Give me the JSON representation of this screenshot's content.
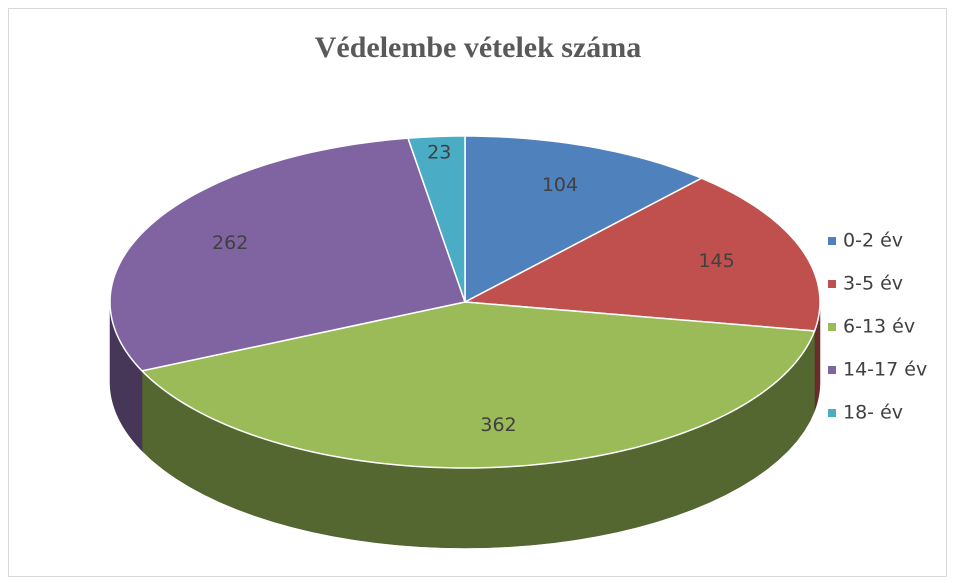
{
  "chart_data": {
    "type": "pie",
    "title": "Védelembe vételek száma",
    "categories": [
      "0-2 év",
      "3-5 év",
      "6-13 év",
      "14-17 év",
      "18- év"
    ],
    "values": [
      104,
      145,
      362,
      262,
      23
    ],
    "colors": [
      "#4f81bd",
      "#c0504d",
      "#9bbb59",
      "#8064a2",
      "#4bacc6"
    ],
    "legend": "right"
  }
}
